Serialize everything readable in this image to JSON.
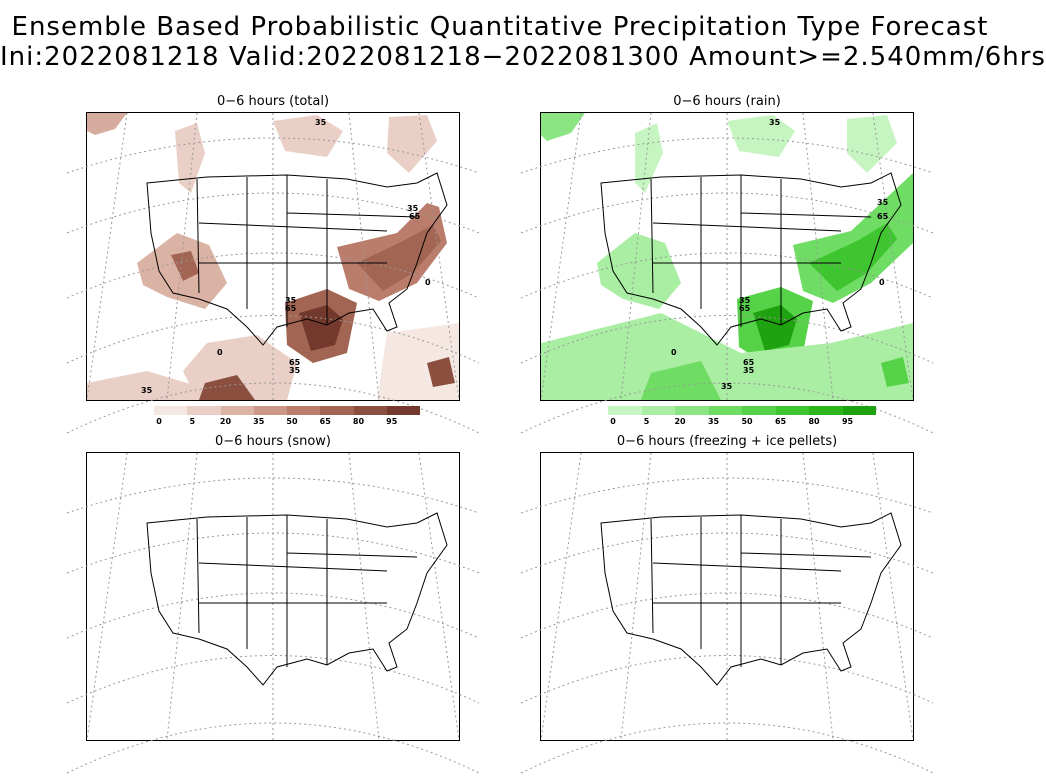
{
  "title": {
    "line1": "Ensemble Based Probabilistic Quantitative Precipitation Type Forecast",
    "line2": "Ini:2022081218 Valid:2022081218−2022081300 Amount>=2.540mm/6hrs"
  },
  "panels": {
    "total": {
      "title": "0−6 hours (total)"
    },
    "rain": {
      "title": "0−6 hours (rain)"
    },
    "snow": {
      "title": "0−6 hours (snow)"
    },
    "frz": {
      "title": "0−6 hours (freezing + ice pellets)"
    }
  },
  "colorbars": {
    "ticks": [
      "0",
      "5",
      "20",
      "35",
      "50",
      "65",
      "80",
      "95"
    ],
    "total_colors": [
      "#f5e8e2",
      "#e9cfc5",
      "#dbb3a5",
      "#cc9786",
      "#ba7d6b",
      "#a36553",
      "#8b4f40",
      "#73392c"
    ],
    "rain_colors": [
      "#c6f5c1",
      "#a9eea2",
      "#8ae582",
      "#6fdc63",
      "#55d248",
      "#3fc52f",
      "#2db51c",
      "#1fa20f"
    ]
  },
  "contour_labels": {
    "total": [
      "35",
      "35",
      "65",
      "35",
      "65",
      "65",
      "35",
      "0",
      "0",
      "35"
    ],
    "rain": [
      "35",
      "35",
      "65",
      "35",
      "65",
      "65",
      "35",
      "0",
      "0",
      "35"
    ]
  }
}
